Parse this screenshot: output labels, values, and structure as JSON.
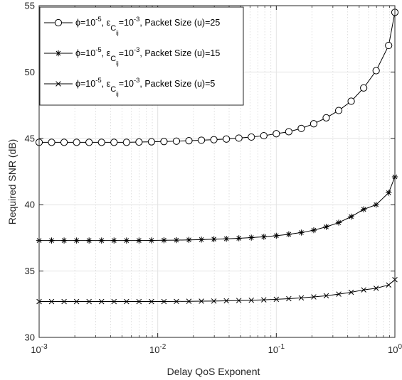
{
  "chart_data": {
    "type": "line",
    "xlabel": "Delay QoS Exponent",
    "ylabel": "Required SNR (dB)",
    "xscale": "log",
    "xlim": [
      0.001,
      1
    ],
    "ylim": [
      30,
      55
    ],
    "grid": true,
    "legend_position": "top-left",
    "x_ticks": [
      {
        "value": 0.001,
        "base": "10",
        "exp": "-3"
      },
      {
        "value": 0.01,
        "base": "10",
        "exp": "-2"
      },
      {
        "value": 0.1,
        "base": "10",
        "exp": "-1"
      },
      {
        "value": 1,
        "base": "10",
        "exp": "0"
      }
    ],
    "y_ticks": [
      "30",
      "35",
      "40",
      "45",
      "50",
      "55"
    ],
    "x": [
      0.001,
      0.001274,
      0.001624,
      0.002069,
      0.002637,
      0.00336,
      0.004281,
      0.005456,
      0.006952,
      0.008859,
      0.01129,
      0.01438,
      0.01833,
      0.02336,
      0.02976,
      0.03793,
      0.04833,
      0.06158,
      0.07848,
      0.1,
      0.1274,
      0.1624,
      0.2069,
      0.2637,
      0.336,
      0.4281,
      0.5456,
      0.6952,
      0.8859,
      1.0
    ],
    "series": [
      {
        "name": "u25",
        "marker": "circle",
        "values": [
          44.7,
          44.7,
          44.7,
          44.7,
          44.7,
          44.7,
          44.7,
          44.7,
          44.72,
          44.74,
          44.76,
          44.79,
          44.82,
          44.86,
          44.9,
          44.95,
          45.02,
          45.1,
          45.2,
          45.35,
          45.5,
          45.75,
          46.1,
          46.55,
          47.1,
          47.8,
          48.8,
          50.1,
          52.0,
          54.5
        ]
      },
      {
        "name": "u15",
        "marker": "asterisk",
        "values": [
          37.3,
          37.3,
          37.3,
          37.3,
          37.3,
          37.3,
          37.3,
          37.3,
          37.3,
          37.31,
          37.32,
          37.33,
          37.35,
          37.37,
          37.4,
          37.43,
          37.47,
          37.52,
          37.58,
          37.66,
          37.77,
          37.9,
          38.08,
          38.33,
          38.65,
          39.1,
          39.65,
          40.0,
          40.9,
          42.1
        ]
      },
      {
        "name": "u5",
        "marker": "x",
        "values": [
          32.7,
          32.7,
          32.7,
          32.7,
          32.7,
          32.7,
          32.7,
          32.7,
          32.7,
          32.7,
          32.7,
          32.71,
          32.72,
          32.73,
          32.74,
          32.76,
          32.78,
          32.8,
          32.83,
          32.87,
          32.92,
          32.98,
          33.05,
          33.14,
          33.26,
          33.4,
          33.58,
          33.7,
          33.95,
          34.35
        ]
      }
    ],
    "legend": [
      {
        "marker": "circle",
        "phi": "ϕ=10",
        "phi_exp": "-5",
        "eps": ", ε",
        "eps_sub": "C",
        "eps_subsub": "ij",
        "eps_val": "=10",
        "eps_exp": "-3",
        "tail": ", Packet Size (u)=25"
      },
      {
        "marker": "asterisk",
        "phi": "ϕ=10",
        "phi_exp": "-5",
        "eps": ", ε",
        "eps_sub": "C",
        "eps_subsub": "ij",
        "eps_val": "=10",
        "eps_exp": "-3",
        "tail": ", Packet Size (u)=15"
      },
      {
        "marker": "x",
        "phi": "ϕ=10",
        "phi_exp": "-5",
        "eps": ", ε",
        "eps_sub": "C",
        "eps_subsub": "ij",
        "eps_val": "=10",
        "eps_exp": "-3",
        "tail": ", Packet Size (u)=5"
      }
    ]
  }
}
